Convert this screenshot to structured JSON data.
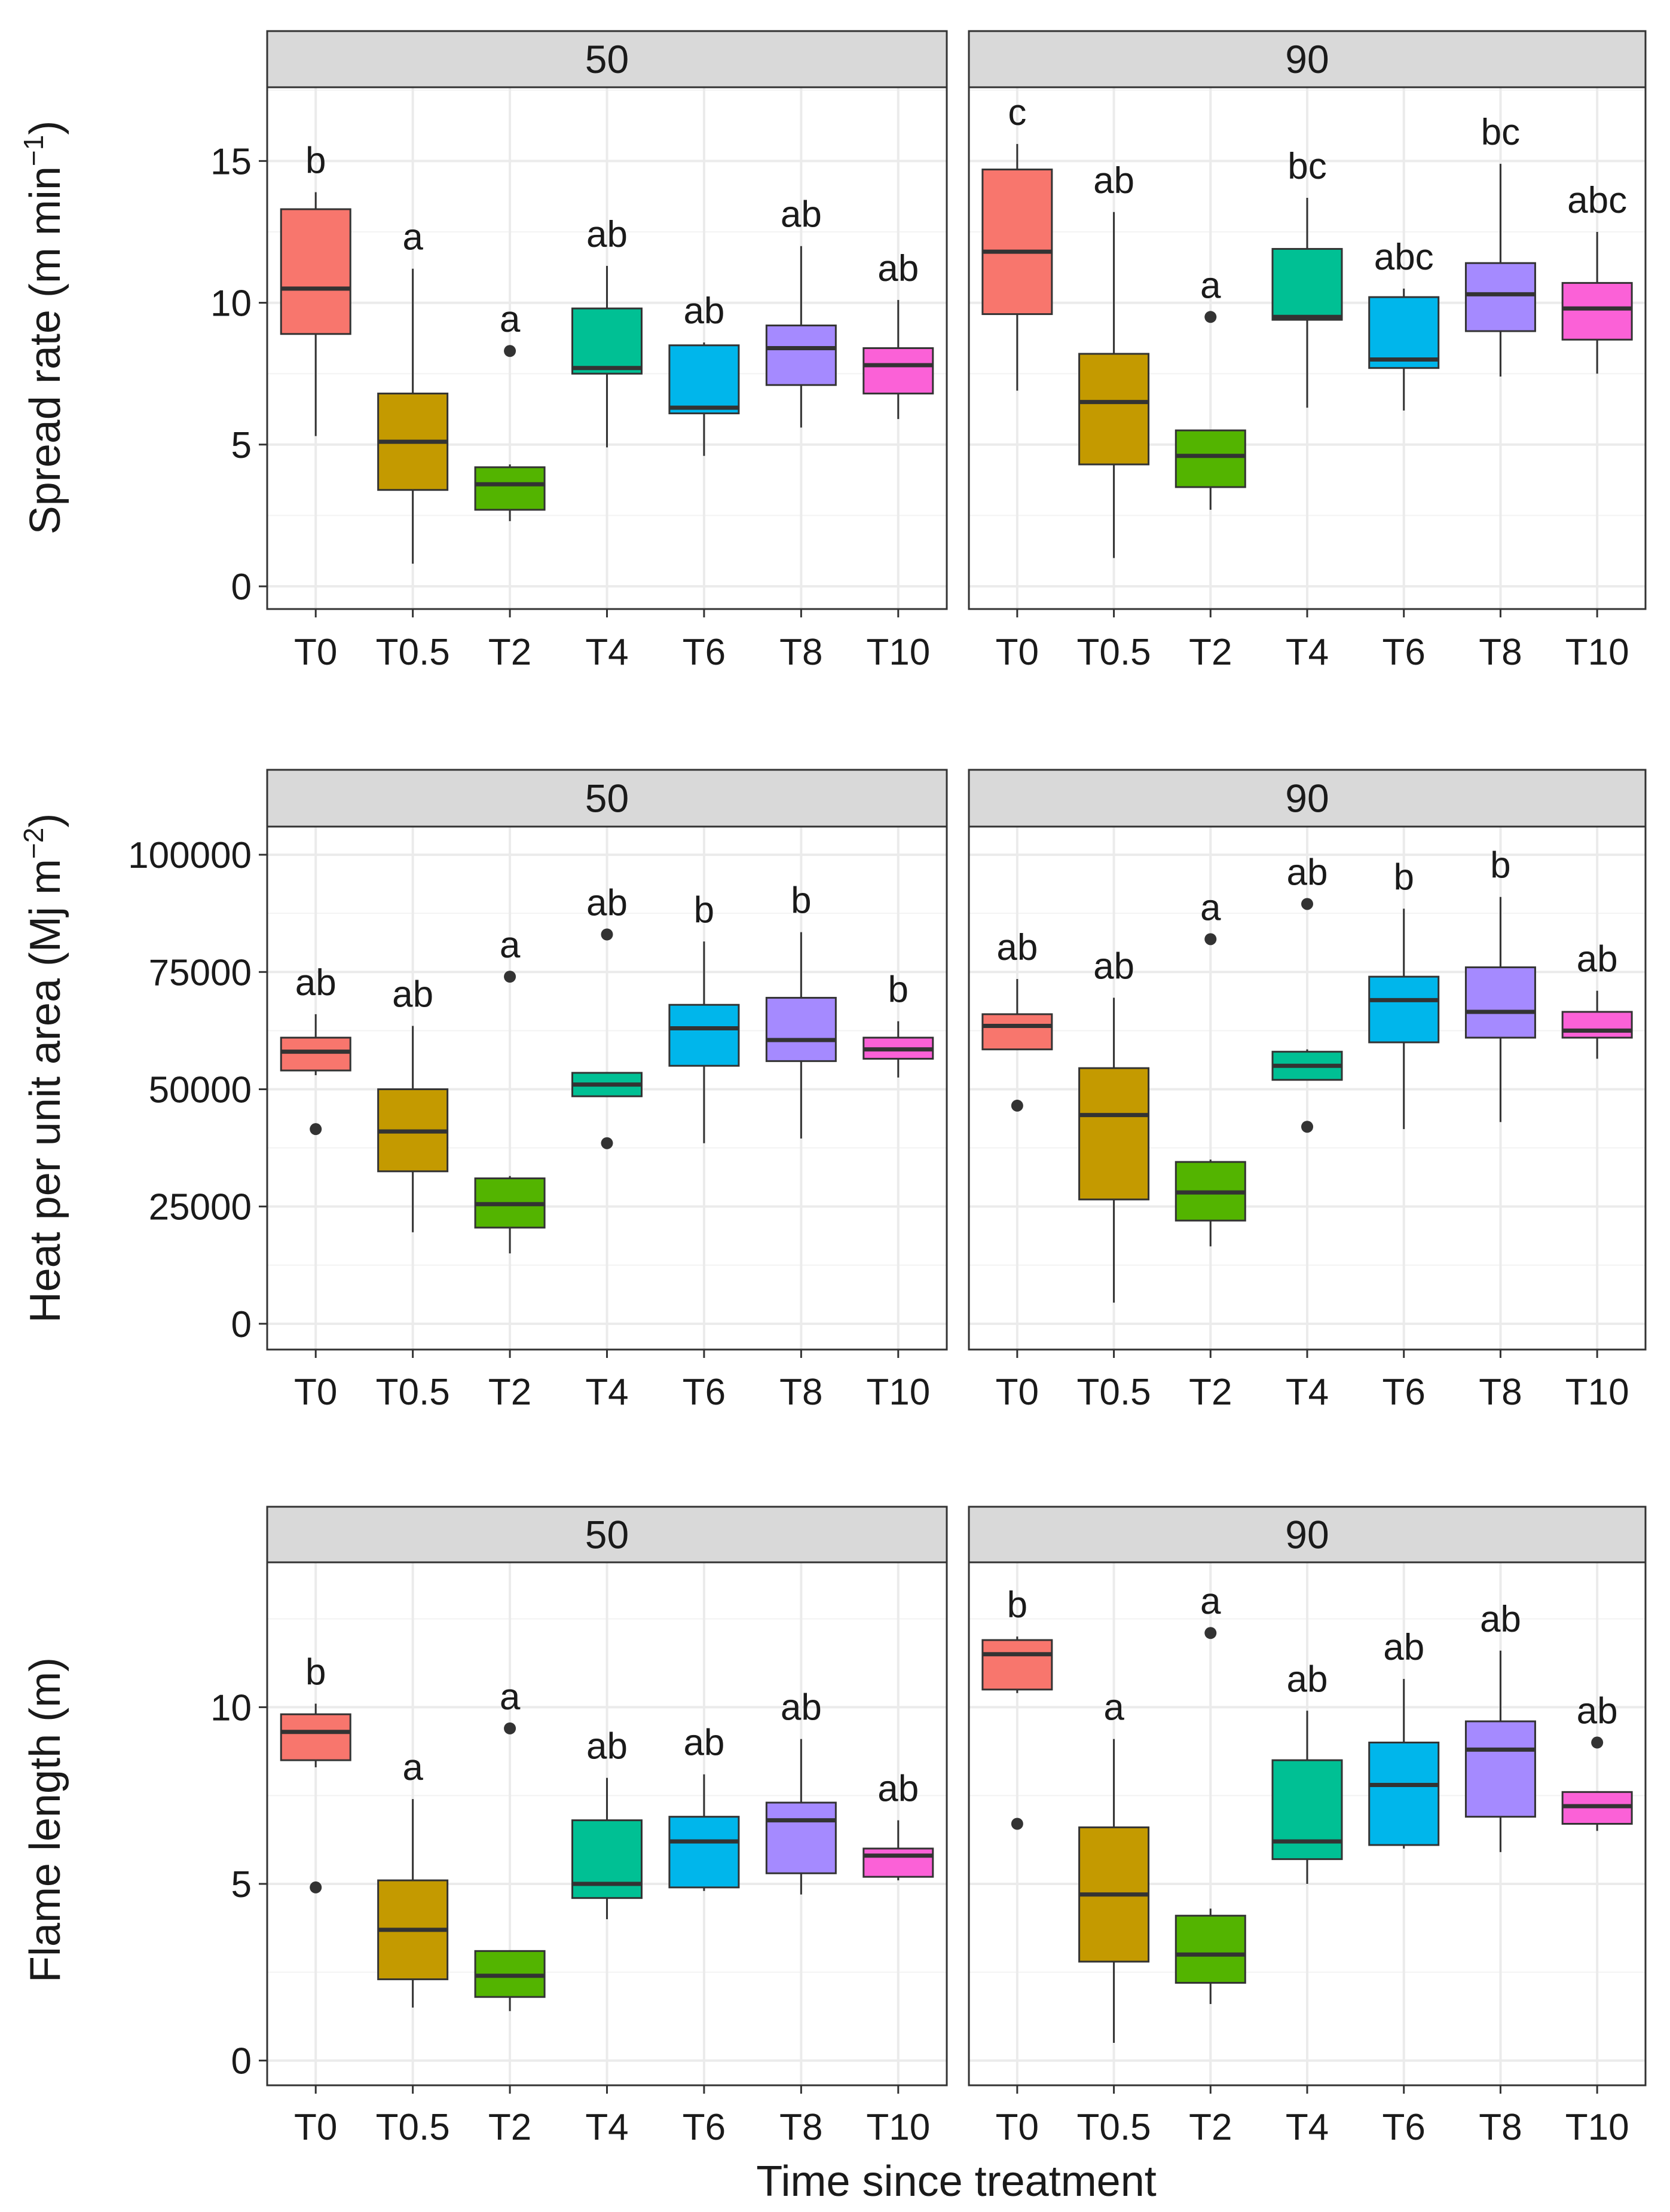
{
  "colors": {
    "T0": "#F8766D",
    "T0.5": "#C49A00",
    "T2": "#53B400",
    "T4": "#00C094",
    "T6": "#00B6EB",
    "T8": "#A58AFF",
    "T10": "#FB61D7",
    "strip_fill": "#D9D9D9",
    "panel_border": "#333333",
    "grid": "#EBEBEB",
    "line": "#333333"
  },
  "chart_data": [
    {
      "type": "box",
      "row": 0,
      "ylabel_main": "Spread rate (m min",
      "ylabel_sup": "−1",
      "ylabel_tail": ")",
      "ylim": [
        -0.8,
        17.6
      ],
      "yticks": [
        0,
        5,
        10,
        15
      ],
      "ytick_labels": [
        "0",
        "5",
        "10",
        "15"
      ],
      "categories": [
        "T0",
        "T0.5",
        "T2",
        "T4",
        "T6",
        "T8",
        "T10"
      ],
      "facets": [
        {
          "strip": "50",
          "boxes": [
            {
              "cat": "T0",
              "low": 5.3,
              "q1": 8.9,
              "med": 10.5,
              "q3": 13.3,
              "high": 13.9,
              "outliers": [],
              "sig": "b"
            },
            {
              "cat": "T0.5",
              "low": 0.8,
              "q1": 3.4,
              "med": 5.1,
              "q3": 6.8,
              "high": 11.2,
              "outliers": [],
              "sig": "a"
            },
            {
              "cat": "T2",
              "low": 2.3,
              "q1": 2.7,
              "med": 3.6,
              "q3": 4.2,
              "high": 4.3,
              "outliers": [
                8.3
              ],
              "sig": "a"
            },
            {
              "cat": "T4",
              "low": 4.9,
              "q1": 7.5,
              "med": 7.7,
              "q3": 9.8,
              "high": 11.3,
              "outliers": [],
              "sig": "ab"
            },
            {
              "cat": "T6",
              "low": 4.6,
              "q1": 6.1,
              "med": 6.3,
              "q3": 8.5,
              "high": 8.6,
              "outliers": [],
              "sig": "ab"
            },
            {
              "cat": "T8",
              "low": 5.6,
              "q1": 7.1,
              "med": 8.4,
              "q3": 9.2,
              "high": 12.0,
              "outliers": [],
              "sig": "ab"
            },
            {
              "cat": "T10",
              "low": 5.9,
              "q1": 6.8,
              "med": 7.8,
              "q3": 8.4,
              "high": 10.1,
              "outliers": [],
              "sig": "ab"
            }
          ]
        },
        {
          "strip": "90",
          "boxes": [
            {
              "cat": "T0",
              "low": 6.9,
              "q1": 9.6,
              "med": 11.8,
              "q3": 14.7,
              "high": 15.6,
              "outliers": [],
              "sig": "c"
            },
            {
              "cat": "T0.5",
              "low": 1.0,
              "q1": 4.3,
              "med": 6.5,
              "q3": 8.2,
              "high": 13.2,
              "outliers": [],
              "sig": "ab"
            },
            {
              "cat": "T2",
              "low": 2.7,
              "q1": 3.5,
              "med": 4.6,
              "q3": 5.5,
              "high": 5.5,
              "outliers": [
                9.5
              ],
              "sig": "a"
            },
            {
              "cat": "T4",
              "low": 6.3,
              "q1": 9.4,
              "med": 9.5,
              "q3": 11.9,
              "high": 13.7,
              "outliers": [],
              "sig": "bc"
            },
            {
              "cat": "T6",
              "low": 6.2,
              "q1": 7.7,
              "med": 8.0,
              "q3": 10.2,
              "high": 10.5,
              "outliers": [],
              "sig": "abc"
            },
            {
              "cat": "T8",
              "low": 7.4,
              "q1": 9.0,
              "med": 10.3,
              "q3": 11.4,
              "high": 14.9,
              "outliers": [],
              "sig": "bc"
            },
            {
              "cat": "T10",
              "low": 7.5,
              "q1": 8.7,
              "med": 9.8,
              "q3": 10.7,
              "high": 12.5,
              "outliers": [],
              "sig": "abc"
            }
          ]
        }
      ]
    },
    {
      "type": "box",
      "row": 1,
      "ylabel_main": "Heat per unit area (Mj m",
      "ylabel_sup": "−2",
      "ylabel_tail": ")",
      "ylim": [
        -5500,
        106000
      ],
      "yticks": [
        0,
        25000,
        50000,
        75000,
        100000
      ],
      "ytick_labels": [
        "0",
        "25000",
        "50000",
        "75000",
        "100000"
      ],
      "categories": [
        "T0",
        "T0.5",
        "T2",
        "T4",
        "T6",
        "T8",
        "T10"
      ],
      "facets": [
        {
          "strip": "50",
          "boxes": [
            {
              "cat": "T0",
              "low": 53000,
              "q1": 54000,
              "med": 58000,
              "q3": 61000,
              "high": 66000,
              "outliers": [
                41500
              ],
              "sig": "ab"
            },
            {
              "cat": "T0.5",
              "low": 19500,
              "q1": 32500,
              "med": 41000,
              "q3": 50000,
              "high": 63500,
              "outliers": [],
              "sig": "ab"
            },
            {
              "cat": "T2",
              "low": 15000,
              "q1": 20500,
              "med": 25500,
              "q3": 31000,
              "high": 31500,
              "outliers": [
                74000
              ],
              "sig": "a"
            },
            {
              "cat": "T4",
              "low": 48500,
              "q1": 48500,
              "med": 51000,
              "q3": 53500,
              "high": 53500,
              "outliers": [
                83000,
                38500
              ],
              "sig": "ab"
            },
            {
              "cat": "T6",
              "low": 38500,
              "q1": 55000,
              "med": 63000,
              "q3": 68000,
              "high": 81500,
              "outliers": [],
              "sig": "b"
            },
            {
              "cat": "T8",
              "low": 39500,
              "q1": 56000,
              "med": 60500,
              "q3": 69500,
              "high": 83500,
              "outliers": [],
              "sig": "b"
            },
            {
              "cat": "T10",
              "low": 52500,
              "q1": 56500,
              "med": 58500,
              "q3": 61000,
              "high": 64500,
              "outliers": [],
              "sig": "b"
            }
          ]
        },
        {
          "strip": "90",
          "boxes": [
            {
              "cat": "T0",
              "low": 58500,
              "q1": 58500,
              "med": 63500,
              "q3": 66000,
              "high": 73500,
              "outliers": [
                46500
              ],
              "sig": "ab"
            },
            {
              "cat": "T0.5",
              "low": 4500,
              "q1": 26500,
              "med": 44500,
              "q3": 54500,
              "high": 69500,
              "outliers": [],
              "sig": "ab"
            },
            {
              "cat": "T2",
              "low": 16500,
              "q1": 22000,
              "med": 28000,
              "q3": 34500,
              "high": 35000,
              "outliers": [
                82000
              ],
              "sig": "a"
            },
            {
              "cat": "T4",
              "low": 52000,
              "q1": 52000,
              "med": 55000,
              "q3": 58000,
              "high": 58500,
              "outliers": [
                89500,
                42000
              ],
              "sig": "ab"
            },
            {
              "cat": "T6",
              "low": 41500,
              "q1": 60000,
              "med": 69000,
              "q3": 74000,
              "high": 88500,
              "outliers": [],
              "sig": "b"
            },
            {
              "cat": "T8",
              "low": 43000,
              "q1": 61000,
              "med": 66500,
              "q3": 76000,
              "high": 91000,
              "outliers": [],
              "sig": "b"
            },
            {
              "cat": "T10",
              "low": 56500,
              "q1": 61000,
              "med": 62500,
              "q3": 66500,
              "high": 71000,
              "outliers": [],
              "sig": "ab"
            }
          ]
        }
      ]
    },
    {
      "type": "box",
      "row": 2,
      "ylabel_main": "Flame length (m)",
      "ylabel_sup": "",
      "ylabel_tail": "",
      "ylim": [
        -0.7,
        14.1
      ],
      "yticks": [
        0,
        5,
        10
      ],
      "ytick_labels": [
        "0",
        "5",
        "10"
      ],
      "categories": [
        "T0",
        "T0.5",
        "T2",
        "T4",
        "T6",
        "T8",
        "T10"
      ],
      "facets": [
        {
          "strip": "50",
          "boxes": [
            {
              "cat": "T0",
              "low": 8.3,
              "q1": 8.5,
              "med": 9.3,
              "q3": 9.8,
              "high": 10.1,
              "outliers": [
                4.9
              ],
              "sig": "b"
            },
            {
              "cat": "T0.5",
              "low": 1.5,
              "q1": 2.3,
              "med": 3.7,
              "q3": 5.1,
              "high": 7.4,
              "outliers": [],
              "sig": "a"
            },
            {
              "cat": "T2",
              "low": 1.4,
              "q1": 1.8,
              "med": 2.4,
              "q3": 3.1,
              "high": 3.1,
              "outliers": [
                9.4
              ],
              "sig": "a"
            },
            {
              "cat": "T4",
              "low": 4.0,
              "q1": 4.6,
              "med": 5.0,
              "q3": 6.8,
              "high": 8.0,
              "outliers": [],
              "sig": "ab"
            },
            {
              "cat": "T6",
              "low": 4.8,
              "q1": 4.9,
              "med": 6.2,
              "q3": 6.9,
              "high": 8.1,
              "outliers": [],
              "sig": "ab"
            },
            {
              "cat": "T8",
              "low": 4.7,
              "q1": 5.3,
              "med": 6.8,
              "q3": 7.3,
              "high": 9.1,
              "outliers": [],
              "sig": "ab"
            },
            {
              "cat": "T10",
              "low": 5.1,
              "q1": 5.2,
              "med": 5.8,
              "q3": 6.0,
              "high": 6.8,
              "outliers": [],
              "sig": "ab"
            }
          ]
        },
        {
          "strip": "90",
          "boxes": [
            {
              "cat": "T0",
              "low": 10.4,
              "q1": 10.5,
              "med": 11.5,
              "q3": 11.9,
              "high": 12.0,
              "outliers": [
                6.7
              ],
              "sig": "b"
            },
            {
              "cat": "T0.5",
              "low": 0.5,
              "q1": 2.8,
              "med": 4.7,
              "q3": 6.6,
              "high": 9.1,
              "outliers": [],
              "sig": "a"
            },
            {
              "cat": "T2",
              "low": 1.6,
              "q1": 2.2,
              "med": 3.0,
              "q3": 4.1,
              "high": 4.3,
              "outliers": [
                12.1
              ],
              "sig": "a"
            },
            {
              "cat": "T4",
              "low": 5.0,
              "q1": 5.7,
              "med": 6.2,
              "q3": 8.5,
              "high": 9.9,
              "outliers": [],
              "sig": "ab"
            },
            {
              "cat": "T6",
              "low": 6.0,
              "q1": 6.1,
              "med": 7.8,
              "q3": 9.0,
              "high": 10.8,
              "outliers": [],
              "sig": "ab"
            },
            {
              "cat": "T8",
              "low": 5.9,
              "q1": 6.9,
              "med": 8.8,
              "q3": 9.6,
              "high": 11.6,
              "outliers": [],
              "sig": "ab"
            },
            {
              "cat": "T10",
              "low": 6.5,
              "q1": 6.7,
              "med": 7.2,
              "q3": 7.6,
              "high": 7.6,
              "outliers": [
                9.0
              ],
              "sig": "ab"
            }
          ]
        }
      ]
    }
  ],
  "xlabel": "Time since treatment"
}
